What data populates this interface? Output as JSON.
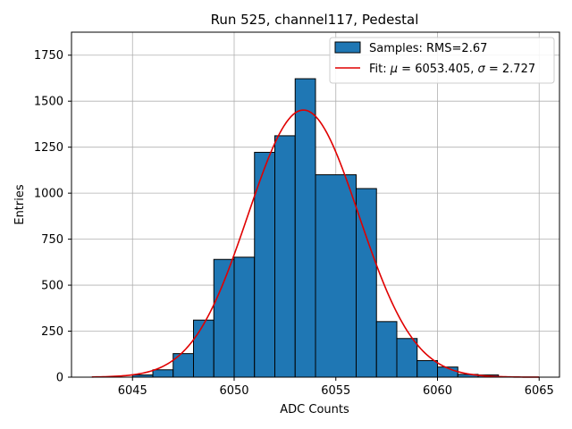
{
  "chart_data": {
    "type": "bar",
    "title": "Run 525, channel117, Pedestal",
    "xlabel": "ADC Counts",
    "ylabel": "Entries",
    "xlim": [
      6042.0,
      6066.0
    ],
    "ylim": [
      0,
      1875
    ],
    "xticks": [
      6045,
      6050,
      6055,
      6060,
      6065
    ],
    "yticks": [
      0,
      250,
      500,
      750,
      1000,
      1250,
      1500,
      1750
    ],
    "grid": true,
    "legend_position": "top-right",
    "bin_edges": [
      6045.0,
      6046.0,
      6047.0,
      6048.0,
      6049.0,
      6050.0,
      6051.0,
      6052.0,
      6053.0,
      6054.0,
      6056.0,
      6057.0,
      6058.0,
      6059.0,
      6060.0,
      6061.0,
      6062.0,
      6063.0
    ],
    "counts": [
      12,
      40,
      128,
      310,
      640,
      652,
      1222,
      1312,
      1622,
      1100,
      1025,
      302,
      210,
      90,
      55,
      15,
      12
    ],
    "series": [
      {
        "name": "Samples: RMS=2.67",
        "kind": "histogram",
        "color": "#1f77b4",
        "edgecolor": "#000000"
      },
      {
        "name": "Fit: μ = 6053.405, σ = 2.727",
        "kind": "gaussian-fit",
        "color": "#e00000",
        "mu": 6053.405,
        "sigma": 2.727,
        "amplitude": 1452,
        "x_range": [
          6043.0,
          6065.0
        ]
      }
    ]
  },
  "legend": {
    "samples_label": "Samples: RMS=2.67",
    "fit_label_prefix": "Fit: ",
    "fit_mu_symbol": "μ",
    "fit_mu_value": " = 6053.405, ",
    "fit_sigma_symbol": "σ",
    "fit_sigma_value": " = 2.727"
  }
}
